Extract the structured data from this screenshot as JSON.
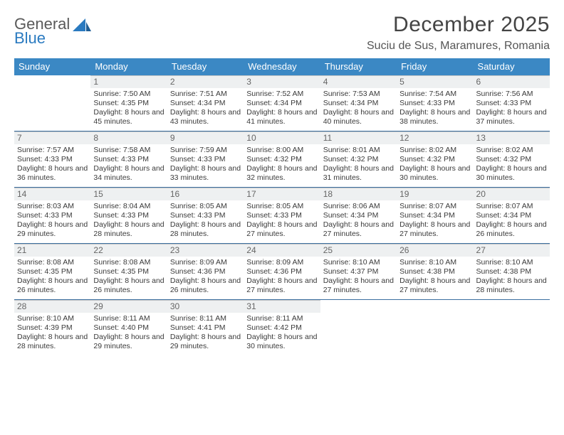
{
  "brand": {
    "line1": "General",
    "line2": "Blue"
  },
  "title": "December 2025",
  "location": "Suciu de Sus, Maramures, Romania",
  "colors": {
    "header_bg": "#3b88c4",
    "header_text": "#ffffff",
    "rule": "#3b6fa0",
    "daynum_bg": "#eef0f1",
    "text": "#333333"
  },
  "day_labels": [
    "Sunday",
    "Monday",
    "Tuesday",
    "Wednesday",
    "Thursday",
    "Friday",
    "Saturday"
  ],
  "first_weekday_index": 1,
  "days": [
    {
      "n": 1,
      "sunrise": "7:50 AM",
      "sunset": "4:35 PM",
      "daylight": "8 hours and 45 minutes."
    },
    {
      "n": 2,
      "sunrise": "7:51 AM",
      "sunset": "4:34 PM",
      "daylight": "8 hours and 43 minutes."
    },
    {
      "n": 3,
      "sunrise": "7:52 AM",
      "sunset": "4:34 PM",
      "daylight": "8 hours and 41 minutes."
    },
    {
      "n": 4,
      "sunrise": "7:53 AM",
      "sunset": "4:34 PM",
      "daylight": "8 hours and 40 minutes."
    },
    {
      "n": 5,
      "sunrise": "7:54 AM",
      "sunset": "4:33 PM",
      "daylight": "8 hours and 38 minutes."
    },
    {
      "n": 6,
      "sunrise": "7:56 AM",
      "sunset": "4:33 PM",
      "daylight": "8 hours and 37 minutes."
    },
    {
      "n": 7,
      "sunrise": "7:57 AM",
      "sunset": "4:33 PM",
      "daylight": "8 hours and 36 minutes."
    },
    {
      "n": 8,
      "sunrise": "7:58 AM",
      "sunset": "4:33 PM",
      "daylight": "8 hours and 34 minutes."
    },
    {
      "n": 9,
      "sunrise": "7:59 AM",
      "sunset": "4:33 PM",
      "daylight": "8 hours and 33 minutes."
    },
    {
      "n": 10,
      "sunrise": "8:00 AM",
      "sunset": "4:32 PM",
      "daylight": "8 hours and 32 minutes."
    },
    {
      "n": 11,
      "sunrise": "8:01 AM",
      "sunset": "4:32 PM",
      "daylight": "8 hours and 31 minutes."
    },
    {
      "n": 12,
      "sunrise": "8:02 AM",
      "sunset": "4:32 PM",
      "daylight": "8 hours and 30 minutes."
    },
    {
      "n": 13,
      "sunrise": "8:02 AM",
      "sunset": "4:32 PM",
      "daylight": "8 hours and 30 minutes."
    },
    {
      "n": 14,
      "sunrise": "8:03 AM",
      "sunset": "4:33 PM",
      "daylight": "8 hours and 29 minutes."
    },
    {
      "n": 15,
      "sunrise": "8:04 AM",
      "sunset": "4:33 PM",
      "daylight": "8 hours and 28 minutes."
    },
    {
      "n": 16,
      "sunrise": "8:05 AM",
      "sunset": "4:33 PM",
      "daylight": "8 hours and 28 minutes."
    },
    {
      "n": 17,
      "sunrise": "8:05 AM",
      "sunset": "4:33 PM",
      "daylight": "8 hours and 27 minutes."
    },
    {
      "n": 18,
      "sunrise": "8:06 AM",
      "sunset": "4:34 PM",
      "daylight": "8 hours and 27 minutes."
    },
    {
      "n": 19,
      "sunrise": "8:07 AM",
      "sunset": "4:34 PM",
      "daylight": "8 hours and 27 minutes."
    },
    {
      "n": 20,
      "sunrise": "8:07 AM",
      "sunset": "4:34 PM",
      "daylight": "8 hours and 26 minutes."
    },
    {
      "n": 21,
      "sunrise": "8:08 AM",
      "sunset": "4:35 PM",
      "daylight": "8 hours and 26 minutes."
    },
    {
      "n": 22,
      "sunrise": "8:08 AM",
      "sunset": "4:35 PM",
      "daylight": "8 hours and 26 minutes."
    },
    {
      "n": 23,
      "sunrise": "8:09 AM",
      "sunset": "4:36 PM",
      "daylight": "8 hours and 26 minutes."
    },
    {
      "n": 24,
      "sunrise": "8:09 AM",
      "sunset": "4:36 PM",
      "daylight": "8 hours and 27 minutes."
    },
    {
      "n": 25,
      "sunrise": "8:10 AM",
      "sunset": "4:37 PM",
      "daylight": "8 hours and 27 minutes."
    },
    {
      "n": 26,
      "sunrise": "8:10 AM",
      "sunset": "4:38 PM",
      "daylight": "8 hours and 27 minutes."
    },
    {
      "n": 27,
      "sunrise": "8:10 AM",
      "sunset": "4:38 PM",
      "daylight": "8 hours and 28 minutes."
    },
    {
      "n": 28,
      "sunrise": "8:10 AM",
      "sunset": "4:39 PM",
      "daylight": "8 hours and 28 minutes."
    },
    {
      "n": 29,
      "sunrise": "8:11 AM",
      "sunset": "4:40 PM",
      "daylight": "8 hours and 29 minutes."
    },
    {
      "n": 30,
      "sunrise": "8:11 AM",
      "sunset": "4:41 PM",
      "daylight": "8 hours and 29 minutes."
    },
    {
      "n": 31,
      "sunrise": "8:11 AM",
      "sunset": "4:42 PM",
      "daylight": "8 hours and 30 minutes."
    }
  ],
  "labels": {
    "sunrise": "Sunrise:",
    "sunset": "Sunset:",
    "daylight": "Daylight:"
  }
}
